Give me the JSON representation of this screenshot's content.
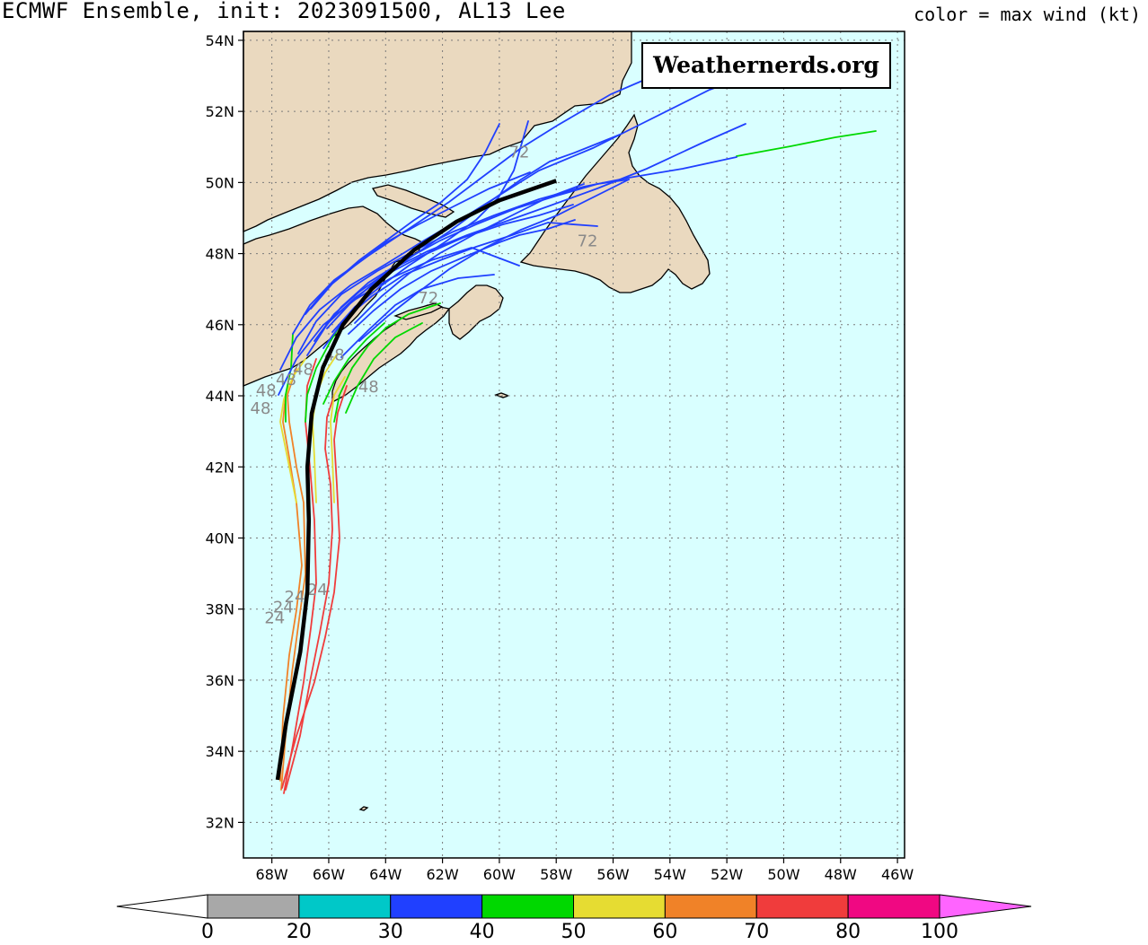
{
  "header": {
    "title": "ECMWF Ensemble, init: 2023091500, AL13 Lee",
    "legend_title": "color = max wind (kt)"
  },
  "watermark": "Weathernerds.org",
  "map": {
    "lon_range": [
      -69,
      -45.75
    ],
    "lat_range": [
      31,
      54.25
    ],
    "lat_ticks": [
      {
        "value": 32,
        "label": "32N"
      },
      {
        "value": 34,
        "label": "34N"
      },
      {
        "value": 36,
        "label": "36N"
      },
      {
        "value": 38,
        "label": "38N"
      },
      {
        "value": 40,
        "label": "40N"
      },
      {
        "value": 42,
        "label": "42N"
      },
      {
        "value": 44,
        "label": "44N"
      },
      {
        "value": 46,
        "label": "46N"
      },
      {
        "value": 48,
        "label": "48N"
      },
      {
        "value": 50,
        "label": "50N"
      },
      {
        "value": 52,
        "label": "52N"
      },
      {
        "value": 54,
        "label": "54N"
      }
    ],
    "lon_ticks": [
      {
        "value": -68,
        "label": "68W"
      },
      {
        "value": -66,
        "label": "66W"
      },
      {
        "value": -64,
        "label": "64W"
      },
      {
        "value": -62,
        "label": "62W"
      },
      {
        "value": -60,
        "label": "60W"
      },
      {
        "value": -58,
        "label": "58W"
      },
      {
        "value": -56,
        "label": "56W"
      },
      {
        "value": -54,
        "label": "54W"
      },
      {
        "value": -52,
        "label": "52W"
      },
      {
        "value": -50,
        "label": "50W"
      },
      {
        "value": -48,
        "label": "48W"
      },
      {
        "value": -46,
        "label": "46W"
      }
    ],
    "grid": true,
    "ocean_color": "#d9ffff",
    "land_color": "#ead9bf",
    "mean_track_color": "#000000",
    "mean_track": [
      [
        -67.8,
        33.2
      ],
      [
        -67.5,
        34.8
      ],
      [
        -67.0,
        36.8
      ],
      [
        -66.75,
        38.5
      ],
      [
        -66.7,
        40.5
      ],
      [
        -66.75,
        42.0
      ],
      [
        -66.6,
        43.5
      ],
      [
        -66.2,
        44.8
      ],
      [
        -65.5,
        46.0
      ],
      [
        -64.5,
        47.0
      ],
      [
        -63.0,
        48.1
      ],
      [
        -61.5,
        48.9
      ],
      [
        -60.0,
        49.5
      ],
      [
        -58.0,
        50.05
      ]
    ],
    "hour_labels": [
      {
        "text": "24",
        "lon": -67.9,
        "lat": 37.6
      },
      {
        "text": "24",
        "lon": -67.6,
        "lat": 37.9
      },
      {
        "text": "24",
        "lon": -67.2,
        "lat": 38.2
      },
      {
        "text": "24",
        "lon": -66.4,
        "lat": 38.4
      },
      {
        "text": "48",
        "lon": -68.2,
        "lat": 44.0
      },
      {
        "text": "48",
        "lon": -68.4,
        "lat": 43.5
      },
      {
        "text": "48",
        "lon": -67.5,
        "lat": 44.3
      },
      {
        "text": "48",
        "lon": -66.9,
        "lat": 44.6
      },
      {
        "text": "48",
        "lon": -65.8,
        "lat": 45.0
      },
      {
        "text": "48",
        "lon": -64.6,
        "lat": 44.1
      },
      {
        "text": "72",
        "lon": -59.3,
        "lat": 50.7
      },
      {
        "text": "72",
        "lon": -56.9,
        "lat": 48.2
      },
      {
        "text": "72",
        "lon": -62.5,
        "lat": 46.6
      }
    ]
  },
  "colorbar": {
    "labels": [
      "0",
      "20",
      "30",
      "40",
      "50",
      "60",
      "70",
      "80",
      "100"
    ],
    "colors": [
      "#a8a8a8",
      "#00c8c8",
      "#2040ff",
      "#00d800",
      "#e6dc32",
      "#f08228",
      "#f03c3c",
      "#f00882",
      "#ff64ff"
    ],
    "under_color": "#ffffff"
  }
}
